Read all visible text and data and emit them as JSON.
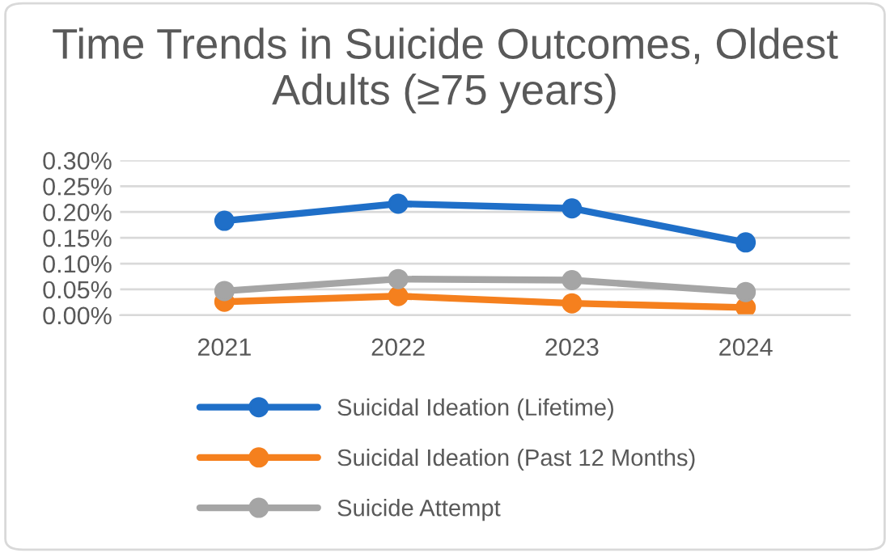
{
  "chart_data": {
    "type": "line",
    "title": "Time Trends in Suicide Outcomes, Oldest Adults (≥75 years)",
    "categories": [
      "2021",
      "2022",
      "2023",
      "2024"
    ],
    "series": [
      {
        "name": "Suicidal Ideation (Lifetime)",
        "color": "#1f6fc8",
        "values": [
          0.183,
          0.216,
          0.207,
          0.141
        ]
      },
      {
        "name": "Suicidal Ideation (Past 12 Months)",
        "color": "#f5801e",
        "values": [
          0.026,
          0.037,
          0.023,
          0.015
        ]
      },
      {
        "name": "Suicide Attempt",
        "color": "#a5a5a5",
        "values": [
          0.047,
          0.07,
          0.068,
          0.045
        ]
      }
    ],
    "ylim": [
      0,
      0.3
    ],
    "yticks": [
      {
        "value": 0,
        "label": "0.00%"
      },
      {
        "value": 0.05,
        "label": "0.05%"
      },
      {
        "value": 0.1,
        "label": "0.10%"
      },
      {
        "value": 0.15,
        "label": "0.15%"
      },
      {
        "value": 0.2,
        "label": "0.20%"
      },
      {
        "value": 0.25,
        "label": "0.25%"
      },
      {
        "value": 0.3,
        "label": "0.30%"
      }
    ],
    "grid": "y",
    "legend": "bottom",
    "marker": "circle",
    "line_style": "solid"
  }
}
